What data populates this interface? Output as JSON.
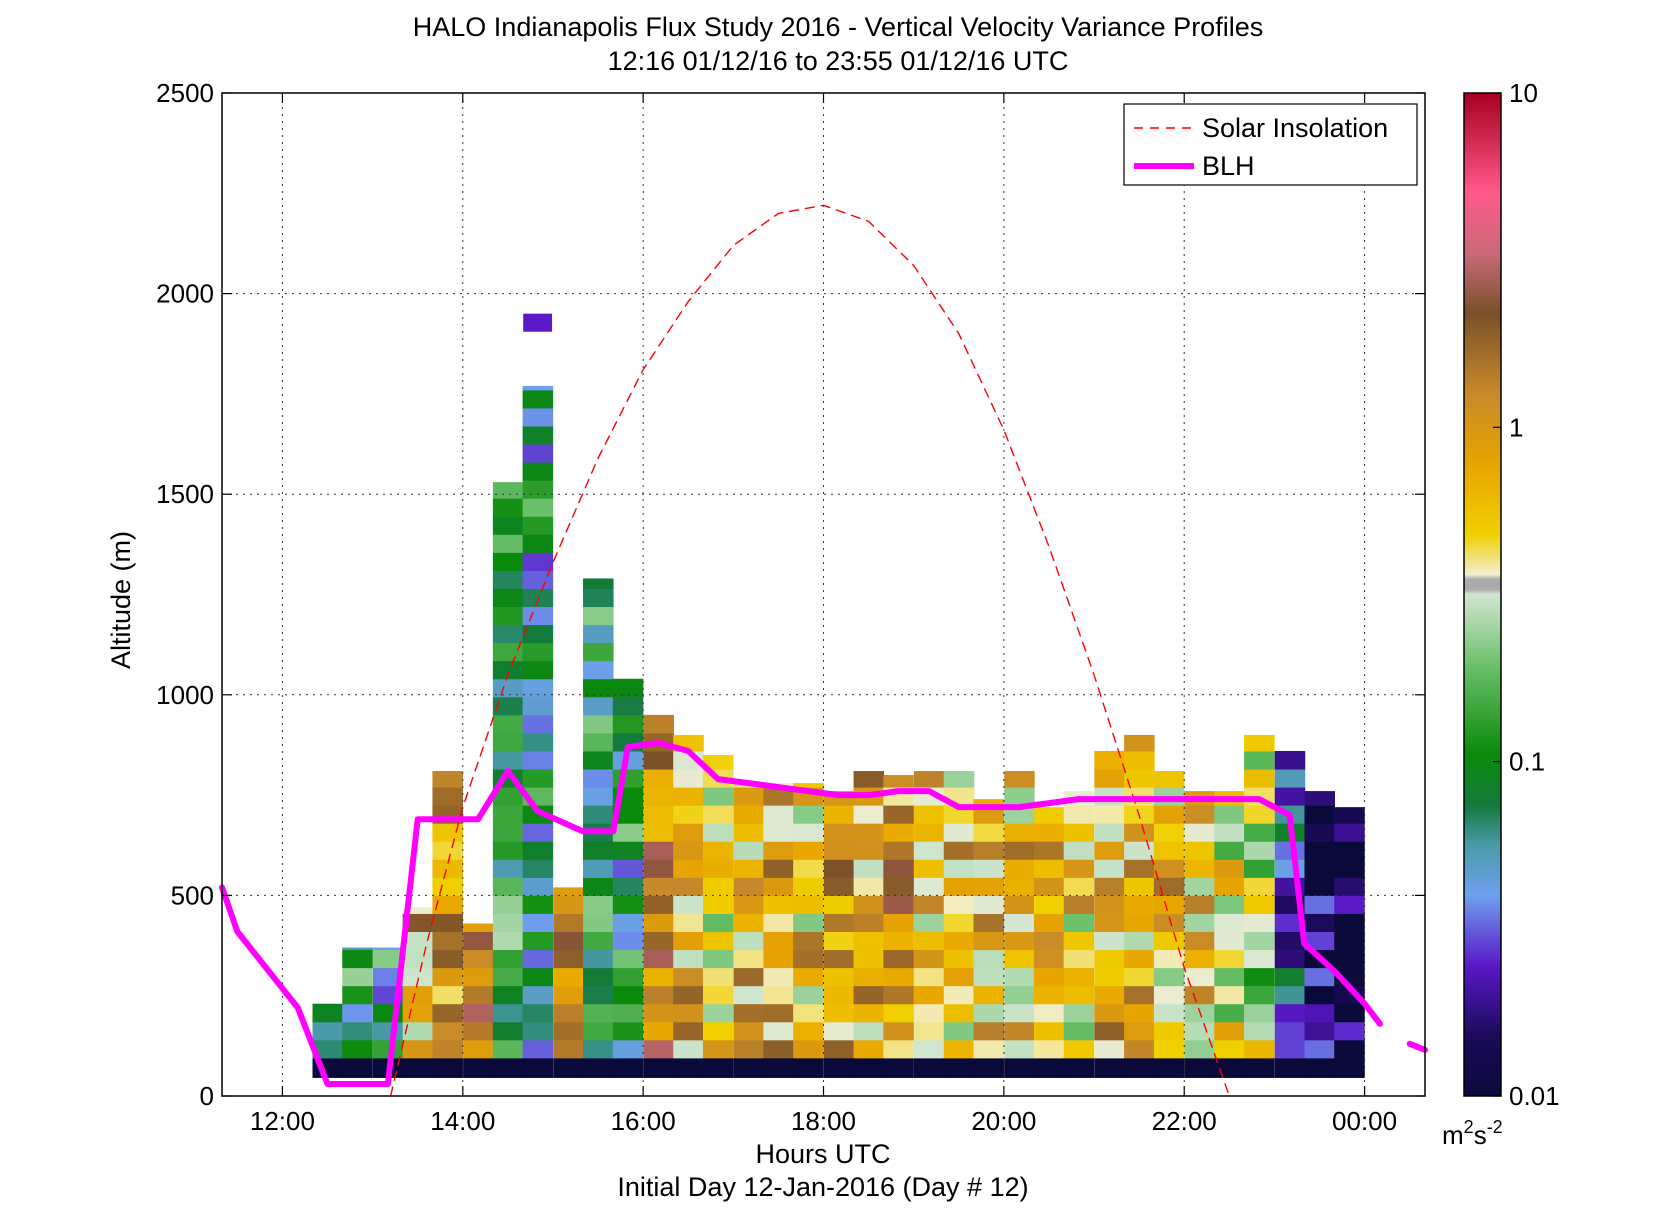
{
  "chart_data": {
    "type": "heatmap",
    "title_line1": "HALO Indianapolis Flux Study 2016 - Vertical Velocity Variance Profiles",
    "title_line2": "12:16 01/12/16 to 23:55 01/12/16  UTC",
    "xlabel": "Hours UTC",
    "xlabel_sub": "Initial Day 12-Jan-2016 (Day # 12)",
    "ylabel": "Altitude (m)",
    "xlim": [
      11.33,
      24.67
    ],
    "ylim": [
      0,
      2500
    ],
    "x_ticks": [
      12,
      14,
      16,
      18,
      20,
      22,
      24
    ],
    "x_tick_labels": [
      "12:00",
      "14:00",
      "16:00",
      "18:00",
      "20:00",
      "22:00",
      "00:00"
    ],
    "y_ticks": [
      0,
      500,
      1000,
      1500,
      2000,
      2500
    ],
    "y_tick_labels": [
      "0",
      "500",
      "1000",
      "1500",
      "2000",
      "2500"
    ],
    "grid": true,
    "legend_position": "top-right",
    "legend": [
      {
        "label": "Solar Insolation",
        "color": "#ff0000",
        "style": "dashed"
      },
      {
        "label": "BLH",
        "color": "#ff00ff",
        "style": "solid"
      }
    ],
    "colorbar": {
      "scale": "log",
      "range": [
        0.01,
        10
      ],
      "ticks": [
        0.01,
        0.1,
        1,
        10
      ],
      "tick_labels": [
        "0.01",
        "0.1",
        "1",
        "10"
      ],
      "unit_base": "m",
      "unit_exp1": "2",
      "unit_mid": "s",
      "unit_exp2": "-2"
    },
    "heatmap": {
      "time_step_h": 0.333,
      "altitude_step_m": 45,
      "columns": [
        {
          "t": 12.5,
          "top": 230,
          "v": 0.05
        },
        {
          "t": 12.83,
          "top": 370,
          "v": 0.09
        },
        {
          "t": 13.17,
          "top": 370,
          "v": 0.08
        },
        {
          "t": 13.5,
          "top": 470,
          "v": 0.75
        },
        {
          "t": 13.83,
          "top": 810,
          "v": 0.8
        },
        {
          "t": 14.17,
          "top": 430,
          "v": 1.8
        },
        {
          "t": 14.5,
          "top": 1530,
          "v": 0.1
        },
        {
          "t": 14.83,
          "top": 1770,
          "v": 0.07
        },
        {
          "t": 15.17,
          "top": 520,
          "v": 0.9
        },
        {
          "t": 15.5,
          "top": 1290,
          "v": 0.09
        },
        {
          "t": 15.83,
          "top": 1040,
          "v": 0.08
        },
        {
          "t": 16.17,
          "top": 950,
          "v": 1.5
        },
        {
          "t": 16.5,
          "top": 900,
          "v": 0.7
        },
        {
          "t": 16.83,
          "top": 850,
          "v": 0.5
        },
        {
          "t": 17.17,
          "top": 780,
          "v": 0.7
        },
        {
          "t": 17.5,
          "top": 780,
          "v": 0.8
        },
        {
          "t": 17.83,
          "top": 780,
          "v": 0.6
        },
        {
          "t": 18.17,
          "top": 760,
          "v": 0.9
        },
        {
          "t": 18.5,
          "top": 810,
          "v": 0.8
        },
        {
          "t": 18.83,
          "top": 800,
          "v": 1.0
        },
        {
          "t": 19.17,
          "top": 810,
          "v": 0.6
        },
        {
          "t": 19.5,
          "top": 810,
          "v": 0.6
        },
        {
          "t": 19.83,
          "top": 740,
          "v": 0.7
        },
        {
          "t": 20.17,
          "top": 810,
          "v": 0.6
        },
        {
          "t": 20.5,
          "top": 720,
          "v": 0.7
        },
        {
          "t": 20.83,
          "top": 760,
          "v": 0.5
        },
        {
          "t": 21.17,
          "top": 860,
          "v": 0.7
        },
        {
          "t": 21.5,
          "top": 900,
          "v": 0.7
        },
        {
          "t": 21.83,
          "top": 810,
          "v": 0.6
        },
        {
          "t": 22.17,
          "top": 760,
          "v": 0.55
        },
        {
          "t": 22.5,
          "top": 760,
          "v": 0.35
        },
        {
          "t": 22.83,
          "top": 900,
          "v": 0.3
        },
        {
          "t": 23.17,
          "top": 860,
          "v": 0.04
        },
        {
          "t": 23.5,
          "top": 760,
          "v": 0.012
        },
        {
          "t": 23.83,
          "top": 720,
          "v": 0.011
        }
      ]
    },
    "series": [
      {
        "name": "Solar Insolation",
        "x": [
          13.2,
          13.6,
          14.0,
          14.5,
          15.0,
          15.5,
          16.0,
          16.5,
          17.0,
          17.5,
          18.0,
          18.5,
          19.0,
          19.5,
          20.0,
          20.5,
          21.0,
          21.5,
          22.0,
          22.5
        ],
        "y": [
          0,
          380,
          720,
          1050,
          1330,
          1590,
          1810,
          1980,
          2120,
          2200,
          2220,
          2180,
          2070,
          1900,
          1660,
          1370,
          1050,
          700,
          320,
          0
        ]
      },
      {
        "name": "BLH",
        "x": [
          11.33,
          11.5,
          12.17,
          12.5,
          13.17,
          13.5,
          14.17,
          14.5,
          14.83,
          15.33,
          15.67,
          15.83,
          16.17,
          16.5,
          16.83,
          17.17,
          17.5,
          17.83,
          18.17,
          18.5,
          18.83,
          19.17,
          19.5,
          19.83,
          20.17,
          20.5,
          20.83,
          21.17,
          21.5,
          21.83,
          22.17,
          22.5,
          22.83,
          23.0,
          23.17,
          23.33,
          23.67,
          24.0,
          24.17
        ],
        "y": [
          520,
          410,
          220,
          30,
          30,
          690,
          690,
          810,
          710,
          660,
          660,
          870,
          880,
          860,
          790,
          780,
          770,
          760,
          750,
          750,
          760,
          760,
          720,
          720,
          720,
          730,
          740,
          740,
          740,
          740,
          740,
          740,
          740,
          720,
          700,
          380,
          310,
          230,
          180
        ]
      },
      {
        "name": "BLH-tail",
        "x": [
          24.5,
          24.67
        ],
        "y": [
          130,
          115
        ]
      }
    ]
  }
}
